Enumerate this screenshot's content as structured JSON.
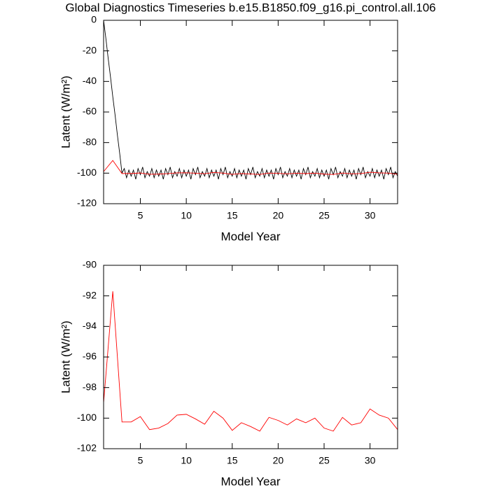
{
  "chart_data": [
    {
      "type": "line",
      "title": "Global Diagnostics Timeseries b.e15.B1850.f09_g16.pi_control.all.106",
      "xlabel": "Model Year",
      "ylabel": "Latent (W/m²)",
      "xlim": [
        1,
        33
      ],
      "ylim": [
        -120,
        0
      ],
      "xticks": [
        5,
        10,
        15,
        20,
        25,
        30
      ],
      "yticks": [
        0,
        -20,
        -40,
        -60,
        -80,
        -100,
        -120
      ],
      "series": [
        {
          "color": "#000000",
          "x": [
            1,
            1.25,
            1.5,
            1.75,
            2,
            2.25,
            2.5,
            2.75,
            3,
            3.25,
            3.5,
            3.75,
            4,
            4.25,
            4.5,
            4.75,
            5,
            5.25,
            5.5,
            5.75,
            6,
            6.25,
            6.5,
            6.75,
            7,
            7.25,
            7.5,
            7.75,
            8,
            8.25,
            8.5,
            8.75,
            9,
            9.25,
            9.5,
            9.75,
            10,
            10.25,
            10.5,
            10.75,
            11,
            11.25,
            11.5,
            11.75,
            12,
            12.25,
            12.5,
            12.75,
            13,
            13.25,
            13.5,
            13.75,
            14,
            14.25,
            14.5,
            14.75,
            15,
            15.25,
            15.5,
            15.75,
            16,
            16.25,
            16.5,
            16.75,
            17,
            17.25,
            17.5,
            17.75,
            18,
            18.25,
            18.5,
            18.75,
            19,
            19.25,
            19.5,
            19.75,
            20,
            20.25,
            20.5,
            20.75,
            21,
            21.25,
            21.5,
            21.75,
            22,
            22.25,
            22.5,
            22.75,
            23,
            23.25,
            23.5,
            23.75,
            24,
            24.25,
            24.5,
            24.75,
            25,
            25.25,
            25.5,
            25.75,
            26,
            26.25,
            26.5,
            26.75,
            27,
            27.25,
            27.5,
            27.75,
            28,
            28.25,
            28.5,
            28.75,
            29,
            29.25,
            29.5,
            29.75,
            30,
            30.25,
            30.5,
            30.75,
            31,
            31.25,
            31.5,
            31.75,
            32,
            32.25,
            32.5,
            32.75,
            33
          ],
          "values": [
            0,
            -12,
            -25,
            -37,
            -50,
            -62,
            -75,
            -87,
            -100,
            -97,
            -103,
            -98,
            -102,
            -98,
            -104,
            -97,
            -101,
            -96,
            -103,
            -99,
            -102,
            -97,
            -103,
            -98,
            -102,
            -98,
            -104,
            -97,
            -101,
            -96,
            -103,
            -99,
            -102,
            -97,
            -103,
            -98,
            -102,
            -98,
            -104,
            -97,
            -101,
            -96,
            -103,
            -99,
            -102,
            -97,
            -103,
            -98,
            -102,
            -98,
            -104,
            -97,
            -101,
            -96,
            -103,
            -99,
            -102,
            -97,
            -103,
            -98,
            -102,
            -98,
            -104,
            -97,
            -101,
            -96,
            -103,
            -99,
            -102,
            -97,
            -103,
            -98,
            -102,
            -98,
            -104,
            -97,
            -101,
            -96,
            -103,
            -99,
            -102,
            -97,
            -103,
            -98,
            -102,
            -98,
            -104,
            -97,
            -101,
            -96,
            -103,
            -99,
            -102,
            -97,
            -103,
            -98,
            -102,
            -98,
            -104,
            -97,
            -101,
            -96,
            -103,
            -99,
            -102,
            -97,
            -103,
            -98,
            -102,
            -98,
            -104,
            -97,
            -101,
            -96,
            -103,
            -99,
            -102,
            -97,
            -103,
            -98,
            -102,
            -98,
            -104,
            -97,
            -101,
            -96,
            -103,
            -99,
            -102
          ]
        },
        {
          "color": "#ff0000",
          "x": [
            1,
            2,
            3,
            4,
            5,
            6,
            7,
            8,
            9,
            10,
            11,
            12,
            13,
            14,
            15,
            16,
            17,
            18,
            19,
            20,
            21,
            22,
            23,
            24,
            25,
            26,
            27,
            28,
            29,
            30,
            31,
            32,
            33
          ],
          "values": [
            -99,
            -91.7,
            -100.25,
            -100.25,
            -99.9,
            -100.75,
            -100.65,
            -100.35,
            -99.8,
            -99.75,
            -100.05,
            -100.4,
            -99.55,
            -100.0,
            -100.8,
            -100.3,
            -100.55,
            -100.85,
            -99.95,
            -100.15,
            -100.45,
            -100.05,
            -100.3,
            -100.0,
            -100.65,
            -100.85,
            -99.95,
            -100.45,
            -100.3,
            -99.4,
            -99.8,
            -100.0,
            -100.75
          ]
        }
      ]
    },
    {
      "type": "line",
      "xlabel": "Model Year",
      "ylabel": "Latent (W/m²)",
      "xlim": [
        1,
        33
      ],
      "ylim": [
        -102,
        -90
      ],
      "xticks": [
        5,
        10,
        15,
        20,
        25,
        30
      ],
      "yticks": [
        -90,
        -92,
        -94,
        -96,
        -98,
        -100,
        -102
      ],
      "series": [
        {
          "color": "#ff0000",
          "x": [
            1,
            2,
            3,
            4,
            5,
            6,
            7,
            8,
            9,
            10,
            11,
            12,
            13,
            14,
            15,
            16,
            17,
            18,
            19,
            20,
            21,
            22,
            23,
            24,
            25,
            26,
            27,
            28,
            29,
            30,
            31,
            32,
            33
          ],
          "values": [
            -99,
            -91.7,
            -100.25,
            -100.25,
            -99.9,
            -100.75,
            -100.65,
            -100.35,
            -99.8,
            -99.75,
            -100.05,
            -100.4,
            -99.55,
            -100.0,
            -100.8,
            -100.3,
            -100.55,
            -100.85,
            -99.95,
            -100.15,
            -100.45,
            -100.05,
            -100.3,
            -100.0,
            -100.65,
            -100.85,
            -99.95,
            -100.45,
            -100.3,
            -99.4,
            -99.8,
            -100.0,
            -100.75
          ]
        }
      ]
    }
  ]
}
